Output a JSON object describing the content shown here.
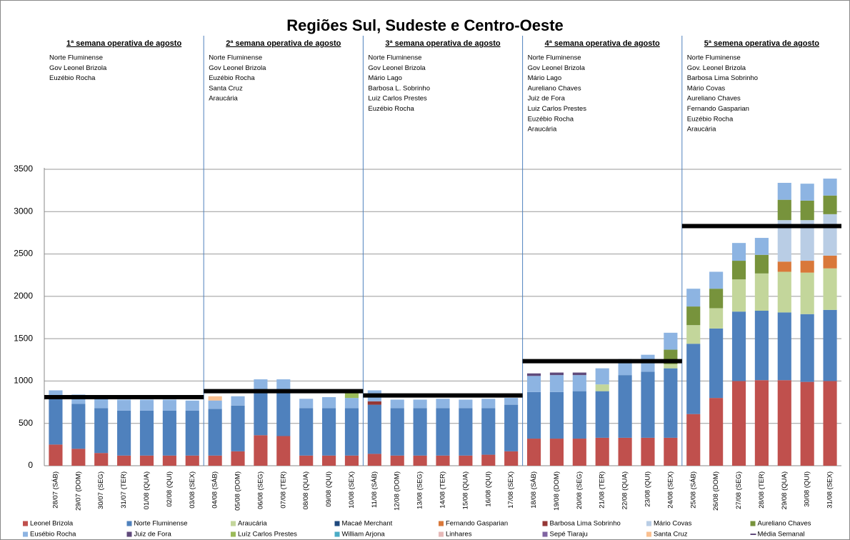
{
  "chart_data": {
    "type": "stacked_bar",
    "title": "Regiões Sul, Sudeste e Centro-Oeste",
    "categories": [
      "28/07 (SÁB)",
      "29/07 (DOM)",
      "30/07 (SEG)",
      "31/07 (TER)",
      "01/08 (QUA)",
      "02/08 (QUI)",
      "03/08 (SEX)",
      "04/08 (SÁB)",
      "05/08 (DOM)",
      "06/08 (SEG)",
      "07/08 (TER)",
      "08/08 (QUA)",
      "09/08 (QUI)",
      "10/08 (SEX)",
      "11/08 (SÁB)",
      "12/08 (DOM)",
      "13/08 (SEG)",
      "14/08 (TER)",
      "15/08 (QUA)",
      "16/08 (QUI)",
      "17/08 (SEX)",
      "18/08 (SÁB)",
      "19/08 (DOM)",
      "20/08 (SEG)",
      "21/08 (TER)",
      "22/08 (QUA)",
      "23/08 (QUI)",
      "24/08 (SEX)",
      "25/08 (SÁB)",
      "26/08 (DOM)",
      "27/08 (SEG)",
      "28/08 (TER)",
      "29/08 (QUA)",
      "30/08 (QUI)",
      "31/08 (SEX)"
    ],
    "series": [
      {
        "name": "Leonel Brizola",
        "color": "#c0504d",
        "values": [
          250,
          200,
          150,
          120,
          120,
          120,
          120,
          120,
          170,
          360,
          350,
          120,
          120,
          120,
          140,
          120,
          120,
          120,
          120,
          130,
          170,
          320,
          320,
          320,
          330,
          330,
          330,
          330,
          610,
          800,
          1000,
          1010,
          1010,
          990,
          1000
        ]
      },
      {
        "name": "Norte Fluminense",
        "color": "#4f81bd",
        "values": [
          550,
          530,
          530,
          530,
          530,
          530,
          530,
          550,
          540,
          530,
          530,
          560,
          560,
          560,
          580,
          560,
          560,
          560,
          560,
          550,
          550,
          550,
          550,
          560,
          550,
          740,
          780,
          820,
          830,
          820,
          820,
          820,
          800,
          800,
          840
        ]
      },
      {
        "name": "Araucária",
        "color": "#c3d69b",
        "values": [
          null,
          null,
          null,
          null,
          null,
          null,
          null,
          null,
          null,
          null,
          null,
          null,
          null,
          null,
          null,
          null,
          null,
          null,
          null,
          null,
          null,
          null,
          null,
          null,
          80,
          null,
          null,
          50,
          220,
          240,
          380,
          440,
          480,
          490,
          490
        ]
      },
      {
        "name": "Macaé Merchant",
        "color": "#1f497d",
        "values": [
          null,
          null,
          null,
          null,
          null,
          null,
          null,
          null,
          null,
          null,
          null,
          null,
          null,
          null,
          null,
          null,
          null,
          null,
          null,
          null,
          null,
          null,
          null,
          null,
          null,
          null,
          null,
          null,
          null,
          null,
          null,
          null,
          null,
          null,
          null
        ]
      },
      {
        "name": "Fernando Gasparian",
        "color": "#d9783a",
        "values": [
          null,
          null,
          null,
          null,
          null,
          null,
          null,
          null,
          null,
          null,
          null,
          null,
          null,
          null,
          null,
          null,
          null,
          null,
          null,
          null,
          null,
          null,
          null,
          null,
          null,
          null,
          null,
          null,
          null,
          null,
          null,
          null,
          120,
          140,
          150
        ]
      },
      {
        "name": "Barbosa Lima Sobrinho",
        "color": "#953735",
        "values": [
          null,
          null,
          null,
          null,
          null,
          null,
          null,
          null,
          null,
          null,
          null,
          null,
          null,
          null,
          40,
          null,
          null,
          null,
          null,
          null,
          null,
          null,
          null,
          null,
          null,
          null,
          null,
          null,
          null,
          null,
          null,
          null,
          null,
          null,
          null
        ]
      },
      {
        "name": "Mário Covas",
        "color": "#b9cde5",
        "values": [
          null,
          null,
          null,
          null,
          null,
          null,
          null,
          null,
          null,
          null,
          null,
          null,
          null,
          null,
          null,
          null,
          null,
          null,
          null,
          null,
          null,
          null,
          null,
          null,
          null,
          null,
          null,
          null,
          null,
          null,
          null,
          null,
          490,
          480,
          490
        ]
      },
      {
        "name": "Aureliano Chaves",
        "color": "#77933c",
        "values": [
          null,
          null,
          null,
          null,
          null,
          null,
          null,
          null,
          null,
          null,
          null,
          null,
          null,
          null,
          null,
          null,
          null,
          null,
          null,
          null,
          null,
          null,
          null,
          null,
          null,
          null,
          null,
          170,
          220,
          230,
          220,
          220,
          240,
          230,
          220
        ]
      },
      {
        "name": "Eusébio Rocha",
        "color": "#8db4e2",
        "values": [
          90,
          110,
          110,
          130,
          130,
          130,
          120,
          100,
          110,
          130,
          140,
          110,
          130,
          120,
          130,
          100,
          100,
          110,
          100,
          110,
          80,
          190,
          200,
          190,
          190,
          190,
          200,
          200,
          210,
          200,
          210,
          200,
          200,
          200,
          200
        ]
      },
      {
        "name": "Juiz de Fora",
        "color": "#604a7b",
        "values": [
          null,
          null,
          null,
          null,
          null,
          null,
          null,
          null,
          null,
          null,
          null,
          null,
          null,
          null,
          null,
          null,
          null,
          null,
          null,
          null,
          null,
          30,
          30,
          30,
          null,
          null,
          null,
          null,
          null,
          null,
          null,
          null,
          null,
          null,
          null
        ]
      },
      {
        "name": "Luíz Carlos Prestes",
        "color": "#9bbb59",
        "values": [
          null,
          null,
          null,
          null,
          null,
          null,
          null,
          null,
          null,
          null,
          null,
          null,
          null,
          60,
          null,
          null,
          null,
          null,
          null,
          null,
          null,
          null,
          null,
          null,
          null,
          null,
          null,
          null,
          null,
          null,
          null,
          null,
          null,
          null,
          null
        ]
      },
      {
        "name": "William Arjona",
        "color": "#4bacc6",
        "values": [
          null,
          null,
          null,
          null,
          null,
          null,
          null,
          null,
          null,
          null,
          null,
          null,
          null,
          null,
          null,
          null,
          null,
          null,
          null,
          null,
          null,
          null,
          null,
          null,
          null,
          null,
          null,
          null,
          null,
          null,
          null,
          null,
          null,
          null,
          null
        ]
      },
      {
        "name": "Linhares",
        "color": "#e6b9b8",
        "values": [
          null,
          null,
          null,
          null,
          null,
          null,
          null,
          null,
          null,
          null,
          null,
          null,
          null,
          null,
          null,
          null,
          null,
          null,
          null,
          null,
          null,
          null,
          null,
          null,
          null,
          null,
          null,
          null,
          null,
          null,
          null,
          null,
          null,
          null,
          null
        ]
      },
      {
        "name": "Sepé Tiaraju",
        "color": "#8064a2",
        "values": [
          null,
          null,
          null,
          null,
          null,
          null,
          null,
          null,
          null,
          null,
          null,
          null,
          null,
          null,
          null,
          null,
          null,
          null,
          null,
          null,
          null,
          null,
          null,
          null,
          null,
          null,
          null,
          null,
          null,
          null,
          null,
          null,
          null,
          null,
          null
        ]
      },
      {
        "name": "Santa Cruz",
        "color": "#fac090",
        "values": [
          null,
          null,
          null,
          null,
          null,
          null,
          null,
          50,
          null,
          null,
          null,
          null,
          null,
          null,
          null,
          null,
          null,
          null,
          null,
          null,
          null,
          null,
          null,
          null,
          null,
          null,
          null,
          null,
          null,
          null,
          null,
          null,
          null,
          null,
          null
        ]
      }
    ],
    "average_name": "Média Semanal",
    "average_color": "#000000",
    "average_legend_color": "#604a7b",
    "weeks": [
      {
        "title": "1ª semana operativa  de agosto",
        "average": 810,
        "plants": [
          "Norte Fluminense",
          "Gov Leonel Brizola",
          "Euzébio Rocha"
        ]
      },
      {
        "title": "2ª semana operativa  de agosto",
        "average": 880,
        "plants": [
          "Norte Fluminense",
          "Gov Leonel Brizola",
          "Euzébio Rocha",
          "Santa Cruz",
          "Araucária"
        ]
      },
      {
        "title": "3ª semana operativa  de agosto",
        "average": 830,
        "plants": [
          "Norte Fluminense",
          "Gov Leonel Brizola",
          "Mário Lago",
          "Barbosa L. Sobrinho",
          "Luiz Carlos Prestes",
          "Euzébio Rocha"
        ]
      },
      {
        "title": "4ª semana operativa  de agosto",
        "average": 1235,
        "plants": [
          "Norte Fluminense",
          "Gov Leonel Brizola",
          "Mário Lago",
          "Aureliano  Chaves",
          "Juiz de Fora",
          "Luiz Carlos Prestes",
          "Euzébio Rocha",
          "Araucária"
        ]
      },
      {
        "title": "5ª semena operativa  de agosto",
        "average": 2830,
        "plants": [
          "Norte Fluminense",
          "Gov. Leonel Brizola",
          "Barbosa Lima Sobrinho",
          "Mário Covas",
          "Aureliano  Chaves",
          "Fernando Gasparian",
          "Euzébio Rocha",
          "Araucária"
        ]
      }
    ],
    "ylim": [
      0,
      3500
    ],
    "yticks": [
      0,
      500,
      1000,
      1500,
      2000,
      2500,
      3000,
      3500
    ],
    "grid": true
  }
}
